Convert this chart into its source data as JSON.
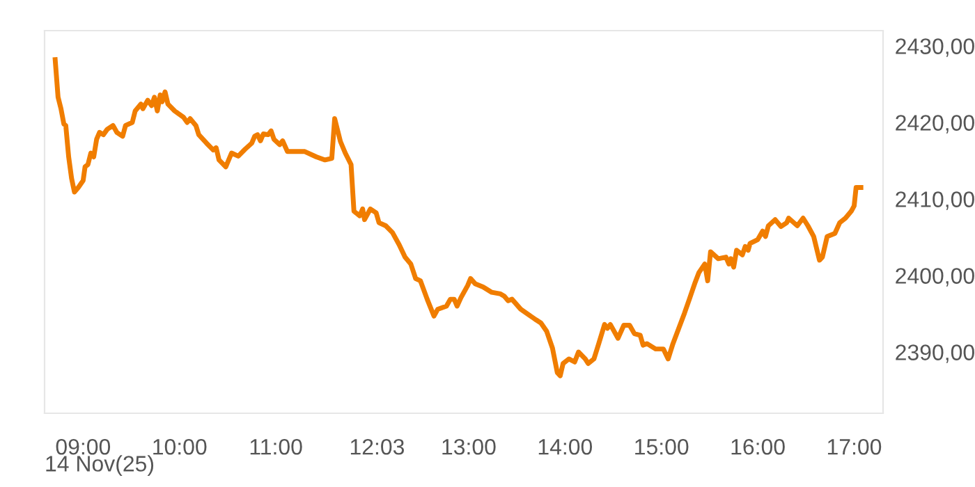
{
  "chart_data": {
    "type": "line",
    "xlabel": "14 Nov(25)",
    "x": [
      8.71,
      8.74,
      8.77,
      8.8,
      8.82,
      8.85,
      8.88,
      8.91,
      8.95,
      9.0,
      9.02,
      9.05,
      9.08,
      9.11,
      9.14,
      9.17,
      9.21,
      9.25,
      9.31,
      9.35,
      9.41,
      9.44,
      9.51,
      9.54,
      9.6,
      9.62,
      9.67,
      9.71,
      9.74,
      9.77,
      9.8,
      9.82,
      9.85,
      9.88,
      9.95,
      10.04,
      10.08,
      10.11,
      10.17,
      10.2,
      10.28,
      10.35,
      10.38,
      10.41,
      10.48,
      10.54,
      10.61,
      10.68,
      10.75,
      10.78,
      10.81,
      10.84,
      10.87,
      10.92,
      10.95,
      10.98,
      11.04,
      11.07,
      11.12,
      11.3,
      11.42,
      11.51,
      11.58,
      11.61,
      11.67,
      11.72,
      11.78,
      11.81,
      11.87,
      11.9,
      11.92,
      11.98,
      12.04,
      12.07,
      12.14,
      12.21,
      12.28,
      12.34,
      12.4,
      12.45,
      12.5,
      12.57,
      12.64,
      12.68,
      12.77,
      12.81,
      12.85,
      12.88,
      12.92,
      12.99,
      13.02,
      13.07,
      13.15,
      13.24,
      13.33,
      13.37,
      13.41,
      13.45,
      13.54,
      13.62,
      13.7,
      13.75,
      13.81,
      13.87,
      13.92,
      13.95,
      13.98,
      14.04,
      14.1,
      14.14,
      14.21,
      14.24,
      14.3,
      14.35,
      14.41,
      14.44,
      14.47,
      14.55,
      14.61,
      14.67,
      14.72,
      14.78,
      14.81,
      14.85,
      14.94,
      15.02,
      15.07,
      15.12,
      15.18,
      15.24,
      15.29,
      15.35,
      15.39,
      15.45,
      15.48,
      15.51,
      15.59,
      15.67,
      15.7,
      15.72,
      15.75,
      15.78,
      15.84,
      15.87,
      15.9,
      15.92,
      16.0,
      16.05,
      16.08,
      16.11,
      16.18,
      16.24,
      16.3,
      16.32,
      16.41,
      16.47,
      16.52,
      16.58,
      16.64,
      16.67,
      16.72,
      16.8,
      16.85,
      16.91,
      16.97,
      17.0,
      17.02,
      17.07
    ],
    "series": [
      {
        "color": "#f07d00",
        "values": [
          2428.2,
          2423.3,
          2421.8,
          2419.8,
          2419.6,
          2415.5,
          2412.7,
          2410.9,
          2411.5,
          2412.4,
          2414.2,
          2414.5,
          2416.0,
          2415.5,
          2417.8,
          2418.7,
          2418.4,
          2419.1,
          2419.6,
          2418.7,
          2418.2,
          2419.6,
          2420.0,
          2421.5,
          2422.4,
          2421.8,
          2422.9,
          2422.2,
          2423.3,
          2421.5,
          2423.6,
          2422.7,
          2424.0,
          2422.4,
          2421.5,
          2420.7,
          2420.0,
          2420.5,
          2419.6,
          2418.4,
          2417.3,
          2416.4,
          2416.7,
          2415.1,
          2414.2,
          2416.0,
          2415.6,
          2416.5,
          2417.3,
          2418.2,
          2418.4,
          2417.6,
          2418.5,
          2418.4,
          2418.9,
          2417.8,
          2417.1,
          2417.6,
          2416.2,
          2416.2,
          2415.5,
          2415.1,
          2415.3,
          2420.5,
          2417.5,
          2416.0,
          2414.5,
          2408.4,
          2407.8,
          2408.7,
          2407.3,
          2408.7,
          2408.2,
          2406.9,
          2406.5,
          2405.6,
          2404.0,
          2402.4,
          2401.5,
          2399.6,
          2399.3,
          2396.9,
          2394.7,
          2395.6,
          2396.0,
          2396.9,
          2396.9,
          2396.0,
          2397.1,
          2398.7,
          2399.6,
          2398.9,
          2398.5,
          2397.8,
          2397.6,
          2397.3,
          2396.7,
          2396.9,
          2395.6,
          2394.9,
          2394.2,
          2393.8,
          2392.7,
          2390.5,
          2387.3,
          2386.9,
          2388.5,
          2389.1,
          2388.7,
          2390.0,
          2389.1,
          2388.5,
          2389.1,
          2391.1,
          2393.6,
          2393.1,
          2393.6,
          2391.8,
          2393.5,
          2393.5,
          2392.4,
          2392.2,
          2390.9,
          2391.1,
          2390.4,
          2390.4,
          2389.1,
          2391.1,
          2393.1,
          2395.1,
          2396.9,
          2399.1,
          2400.4,
          2401.5,
          2399.3,
          2403.1,
          2402.2,
          2402.4,
          2401.5,
          2402.2,
          2401.1,
          2403.3,
          2402.7,
          2403.8,
          2403.3,
          2404.2,
          2404.7,
          2405.8,
          2405.1,
          2406.5,
          2407.3,
          2406.4,
          2406.9,
          2407.5,
          2406.5,
          2407.5,
          2406.5,
          2405.1,
          2402.0,
          2402.4,
          2405.1,
          2405.5,
          2406.9,
          2407.5,
          2408.4,
          2409.1,
          2411.5,
          2411.5
        ]
      }
    ],
    "xlim": [
      8.6,
      17.3
    ],
    "xticks": [
      {
        "value": 9,
        "label": "09:00"
      },
      {
        "value": 10,
        "label": "10:00"
      },
      {
        "value": 11,
        "label": "11:00"
      },
      {
        "value": 12.05,
        "label": "12:03"
      },
      {
        "value": 13,
        "label": "13:00"
      },
      {
        "value": 14,
        "label": "14:00"
      },
      {
        "value": 15,
        "label": "15:00"
      },
      {
        "value": 16,
        "label": "16:00"
      },
      {
        "value": 17,
        "label": "17:00"
      }
    ],
    "ylim": [
      2382,
      2432
    ],
    "yticks": [
      {
        "value": 2390,
        "label": "2390,00"
      },
      {
        "value": 2400,
        "label": "2400,00"
      },
      {
        "value": 2410,
        "label": "2410,00"
      },
      {
        "value": 2420,
        "label": "2420,00"
      },
      {
        "value": 2430,
        "label": "2430,00"
      }
    ],
    "grid": false,
    "marker": "none",
    "line_style": "solid"
  }
}
